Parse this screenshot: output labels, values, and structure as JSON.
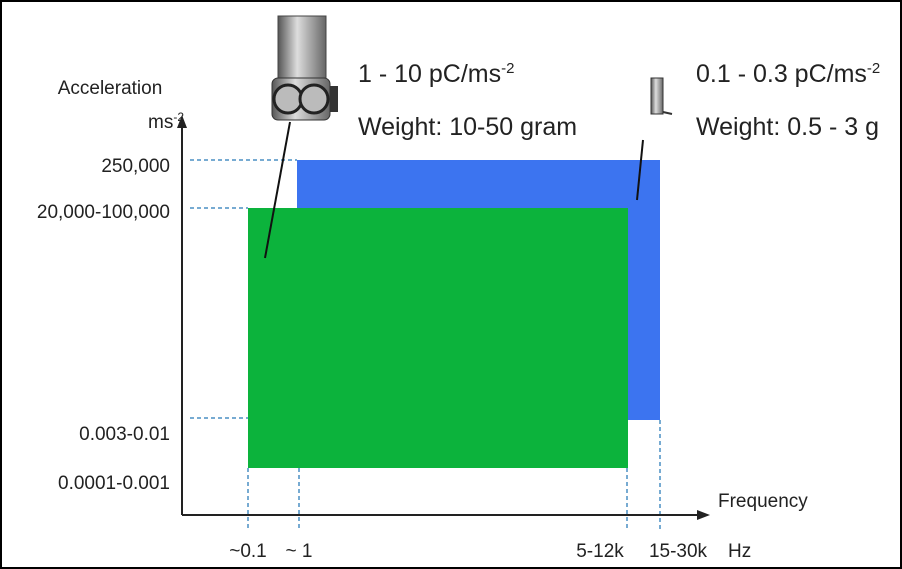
{
  "diagram": {
    "y_axis": {
      "title": "Acceleration",
      "unit": "ms",
      "unit_sup": "-2",
      "levels": [
        "250,000",
        "20,000-100,000",
        "0.003-0.01",
        "0.0001-0.001"
      ]
    },
    "x_axis": {
      "title": "Frequency",
      "unit": "Hz",
      "levels": [
        "~0.1",
        "~ 1",
        "5-12k",
        "15-30k"
      ]
    },
    "sensors": [
      {
        "sensitivity": "1 - 10 pC/ms",
        "sensitivity_sup": "-2",
        "weight": "Weight: 10-50 gram"
      },
      {
        "sensitivity": "0.1 - 0.3 pC/ms",
        "sensitivity_sup": "-2",
        "weight": "Weight: 0.5 - 3 g"
      }
    ]
  }
}
